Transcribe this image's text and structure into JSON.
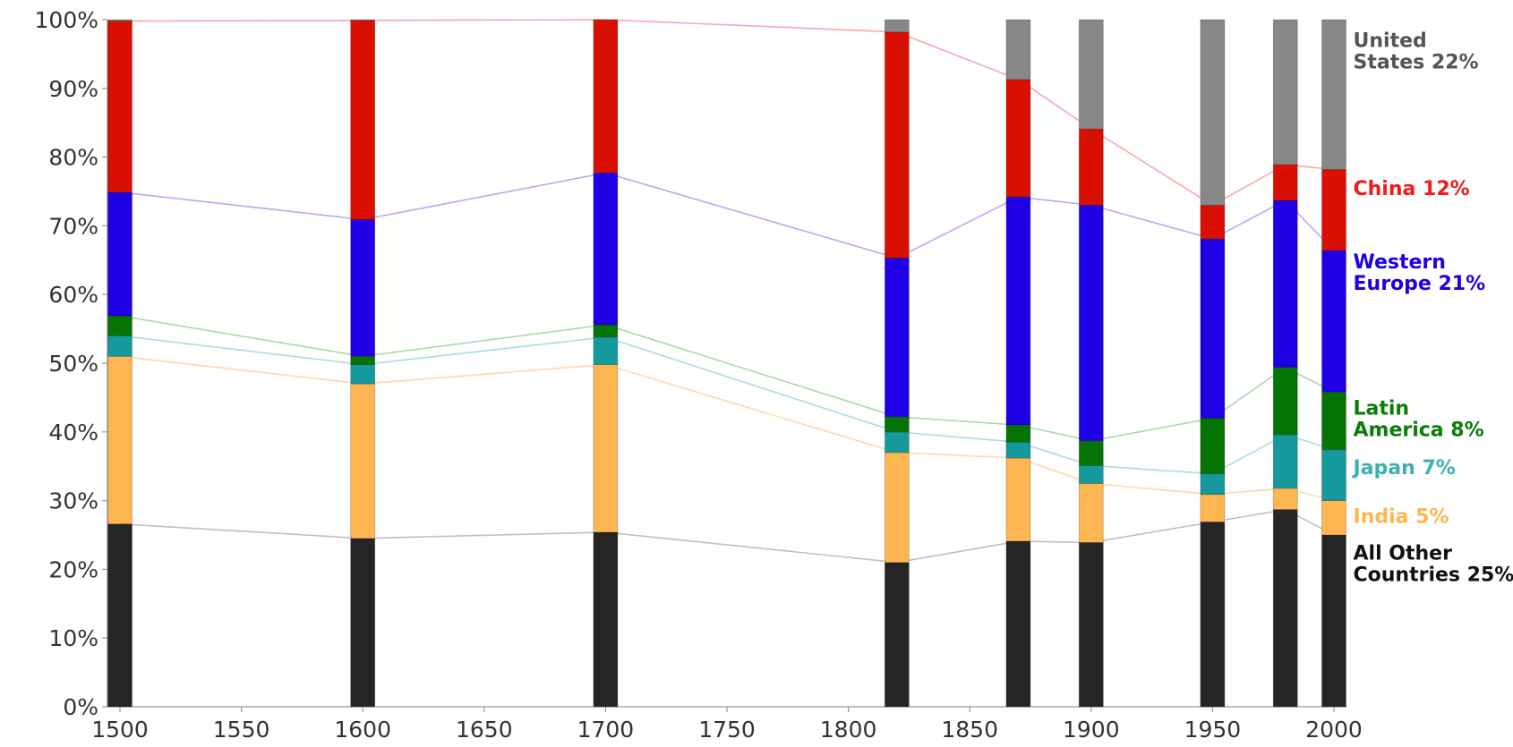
{
  "chart_data": {
    "type": "bar",
    "stacked": true,
    "normalized": true,
    "x": [
      1500,
      1600,
      1700,
      1820,
      1870,
      1900,
      1950,
      1980,
      2000
    ],
    "xlim": [
      1500,
      2000
    ],
    "x_ticks": [
      1500,
      1550,
      1600,
      1650,
      1700,
      1750,
      1800,
      1850,
      1900,
      1950,
      2000
    ],
    "ylim": [
      0,
      100
    ],
    "y_ticks": [
      0,
      10,
      20,
      30,
      40,
      50,
      60,
      70,
      80,
      90,
      100
    ],
    "y_unit": "%",
    "grid": false,
    "series": [
      {
        "name": "All Other Countries",
        "label_lines": [
          "All Other",
          "Countries 25%"
        ],
        "color": "#252525",
        "line_color": "#c0c0c0",
        "label_color": "#111111",
        "values": [
          26.6,
          24.5,
          25.4,
          21.0,
          24.1,
          23.9,
          26.9,
          28.7,
          25.0
        ]
      },
      {
        "name": "India",
        "label_lines": [
          "India 5%"
        ],
        "color": "#fdb652",
        "line_color": "#ffd8a8",
        "label_color": "#fdb652",
        "values": [
          24.4,
          22.5,
          24.4,
          16.0,
          12.1,
          8.6,
          4.0,
          3.1,
          5.0
        ]
      },
      {
        "name": "Japan",
        "label_lines": [
          "Japan 7%"
        ],
        "color": "#16999c",
        "line_color": "#a8dede",
        "label_color": "#3fb0b0",
        "values": [
          3.0,
          2.8,
          4.0,
          3.0,
          2.3,
          2.6,
          3.0,
          7.8,
          7.4
        ]
      },
      {
        "name": "Latin America",
        "label_lines": [
          "Latin",
          "America 8%"
        ],
        "color": "#057405",
        "line_color": "#a8d9a8",
        "label_color": "#0a7d0a",
        "values": [
          2.9,
          1.2,
          1.8,
          2.2,
          2.5,
          3.6,
          8.1,
          9.8,
          8.4
        ]
      },
      {
        "name": "Western Europe",
        "label_lines": [
          "Western",
          "Europe 21%"
        ],
        "color": "#1f00e4",
        "line_color": "#b4aaf5",
        "label_color": "#1f00e4",
        "values": [
          18.0,
          19.9,
          22.1,
          23.1,
          33.2,
          34.3,
          26.1,
          24.3,
          20.6
        ]
      },
      {
        "name": "China",
        "label_lines": [
          "China 12%"
        ],
        "color": "#d90f02",
        "line_color": "#f8a8a8",
        "label_color": "#ef1c1c",
        "values": [
          24.9,
          29.0,
          22.3,
          32.9,
          17.1,
          11.1,
          4.9,
          5.2,
          11.8
        ]
      },
      {
        "name": "United States",
        "label_lines": [
          "United",
          "States 22%"
        ],
        "color": "#878787",
        "line_color": "#aaaaaa",
        "label_color": "#555555",
        "values": [
          0.2,
          0.1,
          0.0,
          1.8,
          8.7,
          15.9,
          27.0,
          21.1,
          21.8
        ]
      }
    ]
  }
}
